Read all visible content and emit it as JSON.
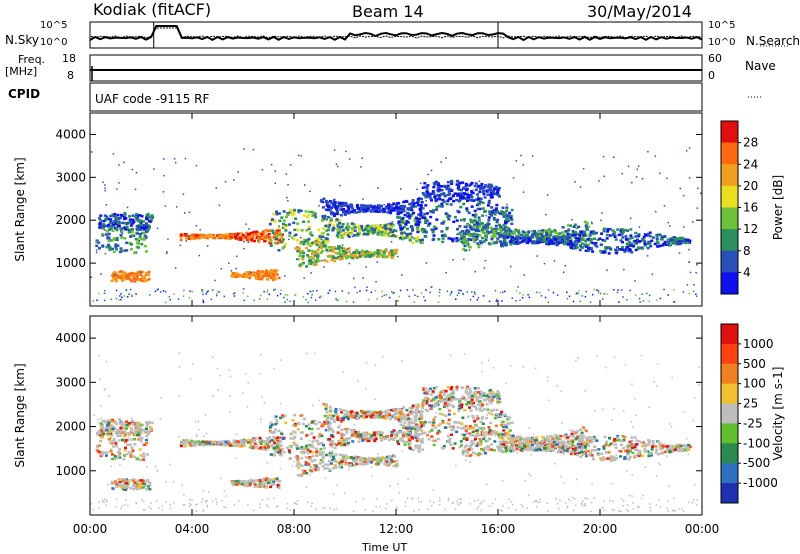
{
  "header": {
    "station": "Kodiak (fitACF)",
    "beam": "Beam 14",
    "date": "30/May/2014"
  },
  "strip_panels": {
    "nsky_label": "N.Sky",
    "nsearch_label": "N.Search",
    "noise_ticks": [
      "10^5",
      "10^0"
    ],
    "freq_label_1": "Freq.",
    "freq_label_2": "[MHz]",
    "freq_ticks": [
      "18",
      "8"
    ],
    "nave_label": "Nave",
    "nave_ticks": [
      "60",
      "0"
    ],
    "cpid_label": "CPID",
    "cpid_text": "UAF code -9115 RF"
  },
  "time_axis": {
    "label": "Time UT",
    "ticks": [
      "00:00",
      "04:00",
      "08:00",
      "12:00",
      "16:00",
      "20:00",
      "00:00"
    ]
  },
  "chart_data": [
    {
      "type": "heatmap",
      "parameter": "power",
      "ylabel": "Slant Range [km]",
      "yticks": [
        1000,
        2000,
        3000,
        4000
      ],
      "ylim": [
        0,
        4500
      ],
      "xlim_hours": [
        0,
        24
      ],
      "colorbar": {
        "label": "Power [dB]",
        "ticks": [
          "4",
          "8",
          "12",
          "16",
          "20",
          "24",
          "28"
        ],
        "colors": [
          "#1010ee",
          "#2850b8",
          "#2a8f5a",
          "#6cc03a",
          "#e8e020",
          "#f0a020",
          "#ff6a10",
          "#e01010"
        ]
      }
    },
    {
      "type": "heatmap",
      "parameter": "velocity",
      "ylabel": "Slant Range [km]",
      "yticks": [
        1000,
        2000,
        3000,
        4000
      ],
      "ylim": [
        0,
        4500
      ],
      "xlim_hours": [
        0,
        24
      ],
      "colorbar": {
        "label": "Velocity [m s-1]",
        "ticks": [
          "1000",
          "500",
          "100",
          "25",
          "-25",
          "-100",
          "-500",
          "-1000"
        ],
        "colors": [
          "#2030b0",
          "#3070c0",
          "#2a8a50",
          "#60c030",
          "#bdbdbd",
          "#f0c030",
          "#f08020",
          "#ff4010",
          "#e01010"
        ]
      }
    }
  ]
}
